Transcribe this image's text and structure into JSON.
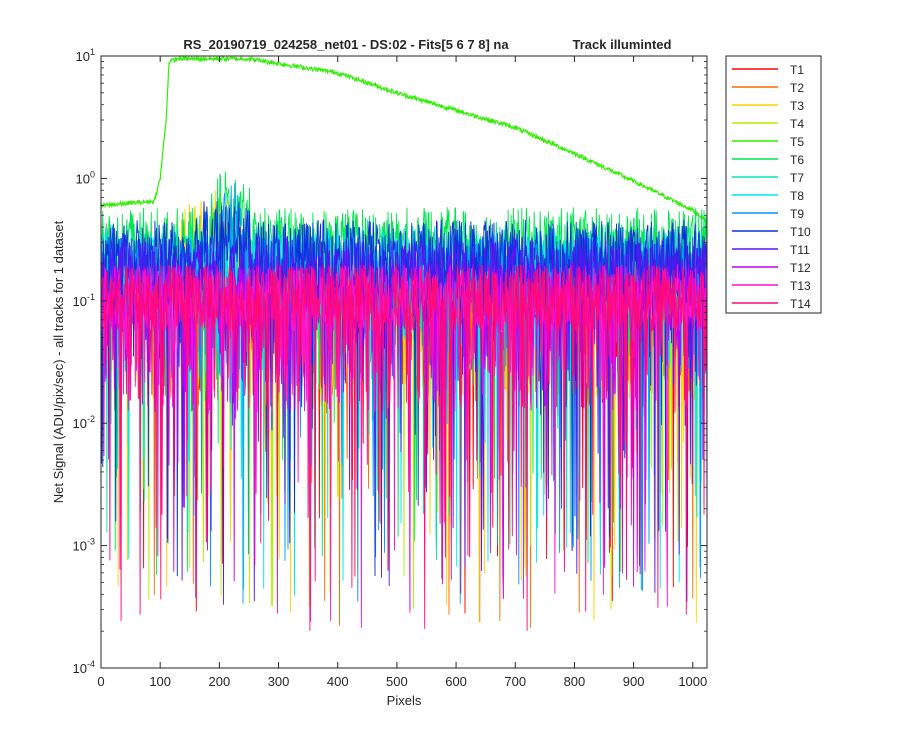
{
  "chart_data": {
    "type": "line",
    "title_left": "RS_20190719_024258_net01 - DS:02 - Fits[5  6  7  8]   na",
    "title_right": "Track illuminted",
    "xlabel": "Pixels",
    "ylabel": "Net Signal (ADU/pix/sec) - all tracks for 1 dataset",
    "xlim": [
      0,
      1024
    ],
    "ylim": [
      0.0001,
      10
    ],
    "y_scale": "log",
    "grid": false,
    "legend_position": "outside-right",
    "x_ticks": [
      "0",
      "100",
      "200",
      "300",
      "400",
      "500",
      "600",
      "700",
      "800",
      "900",
      "1000"
    ],
    "y_ticks": [
      {
        "base": "10",
        "exp": "-4"
      },
      {
        "base": "10",
        "exp": "-3"
      },
      {
        "base": "10",
        "exp": "-2"
      },
      {
        "base": "10",
        "exp": "-1"
      },
      {
        "base": "10",
        "exp": "0"
      },
      {
        "base": "10",
        "exp": "1"
      }
    ],
    "series": [
      {
        "name": "T1",
        "color": "#ff0000",
        "baseline": 0.12
      },
      {
        "name": "T2",
        "color": "#ff6a00",
        "baseline": 0.12
      },
      {
        "name": "T3",
        "color": "#ffd200",
        "baseline": 0.14,
        "hump": {
          "x": [
            120,
            250
          ],
          "value": 0.5
        }
      },
      {
        "name": "T4",
        "color": "#b4f000",
        "baseline": 0.15
      },
      {
        "name": "T5",
        "color": "#2df000",
        "baseline": 9.6,
        "profile": [
          [
            0,
            0.6
          ],
          [
            90,
            0.65
          ],
          [
            100,
            1.0
          ],
          [
            110,
            3.0
          ],
          [
            115,
            9.0
          ],
          [
            130,
            9.5
          ],
          [
            250,
            9.5
          ],
          [
            400,
            7.3
          ],
          [
            500,
            5.0
          ],
          [
            600,
            3.6
          ],
          [
            700,
            2.6
          ],
          [
            800,
            1.6
          ],
          [
            900,
            0.95
          ],
          [
            1000,
            0.55
          ],
          [
            1024,
            0.45
          ]
        ]
      },
      {
        "name": "T6",
        "color": "#00e650",
        "baseline": 0.35,
        "hump": {
          "x": [
            180,
            260
          ],
          "value": 0.75
        }
      },
      {
        "name": "T7",
        "color": "#00e6b4",
        "baseline": 0.25
      },
      {
        "name": "T8",
        "color": "#00e6f5",
        "baseline": 0.22
      },
      {
        "name": "T9",
        "color": "#0096ff",
        "baseline": 0.2,
        "hump": {
          "x": [
            200,
            240
          ],
          "value": 0.6
        }
      },
      {
        "name": "T10",
        "color": "#0a32dc",
        "baseline": 0.28,
        "hump": {
          "x": [
            150,
            260
          ],
          "value": 0.45
        }
      },
      {
        "name": "T11",
        "color": "#5a14f0",
        "baseline": 0.2
      },
      {
        "name": "T12",
        "color": "#c800f0",
        "baseline": 0.12
      },
      {
        "name": "T13",
        "color": "#ff14c8",
        "baseline": 0.12
      },
      {
        "name": "T14",
        "color": "#ff0a78",
        "baseline": 0.12
      }
    ]
  }
}
